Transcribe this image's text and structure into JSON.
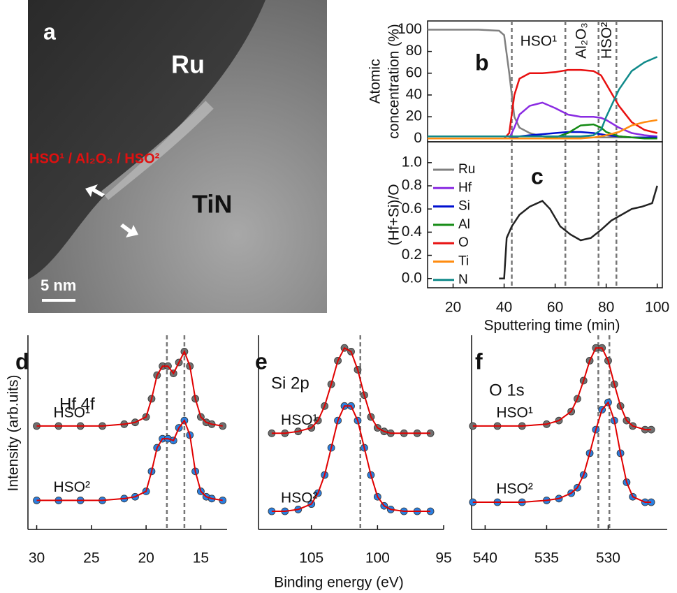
{
  "tem_image": {
    "label": "a",
    "labels": [
      "Ru",
      "TiN"
    ],
    "stack": "HSO¹ / Al₂O₃ / HSO²",
    "scale_bar": "5 nm"
  },
  "figure": {
    "xlabel": "Binding energy (eV)",
    "ylabel": "Intensity (arb.uits)"
  },
  "chart_data": [
    {
      "type": "line",
      "label": "b",
      "ylabel": [
        "Atomic",
        "concentration (%)"
      ],
      "xlim": [
        10,
        102
      ],
      "ylim": [
        -3,
        108
      ],
      "yticks": [
        0,
        20,
        40,
        60,
        80,
        100
      ],
      "vlines": [
        43,
        64,
        77,
        84
      ],
      "region_labels": [
        "HSO¹",
        "Al₂O₃",
        "HSO²"
      ],
      "legend": "left",
      "x": [
        10,
        20,
        30,
        38,
        40,
        42,
        44,
        46,
        50,
        55,
        60,
        65,
        70,
        75,
        78,
        80,
        85,
        90,
        95,
        100
      ],
      "series": [
        {
          "name": "Ru",
          "color": "#808080",
          "values": [
            100,
            100,
            100,
            99,
            95,
            60,
            20,
            10,
            5,
            2,
            1,
            1,
            1,
            1,
            1,
            1,
            1,
            1,
            1,
            1
          ]
        },
        {
          "name": "Hf",
          "color": "#8a2be2",
          "values": [
            0,
            0,
            0,
            0,
            0,
            0,
            10,
            22,
            30,
            33,
            28,
            22,
            20,
            20,
            19,
            17,
            10,
            5,
            3,
            2
          ]
        },
        {
          "name": "Si",
          "color": "#0010d0",
          "values": [
            0,
            0,
            0,
            0,
            0,
            0,
            1,
            2,
            3,
            4,
            5,
            6,
            6,
            5,
            4,
            3,
            2,
            1,
            1,
            1
          ]
        },
        {
          "name": "Al",
          "color": "#138a13",
          "values": [
            0,
            0,
            0,
            0,
            0,
            0,
            0,
            0,
            0,
            0,
            1,
            5,
            12,
            13,
            10,
            6,
            2,
            1,
            0,
            0
          ]
        },
        {
          "name": "O",
          "color": "#e81010",
          "values": [
            0,
            0,
            0,
            0,
            0,
            5,
            40,
            55,
            60,
            60,
            61,
            63,
            63,
            62,
            58,
            50,
            30,
            15,
            8,
            5
          ]
        },
        {
          "name": "Ti",
          "color": "#ff8c10",
          "values": [
            0,
            0,
            0,
            0,
            0,
            0,
            0,
            0,
            0,
            0,
            0,
            0,
            0,
            1,
            2,
            3,
            6,
            12,
            15,
            17
          ]
        },
        {
          "name": "N",
          "color": "#108a8a",
          "values": [
            2,
            2,
            2,
            2,
            2,
            2,
            2,
            2,
            2,
            2,
            2,
            2,
            2,
            3,
            8,
            20,
            45,
            62,
            70,
            75
          ]
        }
      ]
    },
    {
      "type": "line",
      "label": "c",
      "ylabel": [
        "(Hf+Si)/O"
      ],
      "xlabel": "Sputtering time (min)",
      "xlim": [
        10,
        102
      ],
      "ylim": [
        -0.08,
        1.18
      ],
      "xticks": [
        20,
        40,
        60,
        80,
        100
      ],
      "yticks": [
        {
          "value": 0,
          "label": "0.0"
        },
        0.2,
        0.4,
        0.6,
        0.8,
        {
          "value": 1,
          "label": "1.0"
        }
      ],
      "vlines": [
        43,
        64,
        77,
        84
      ],
      "x": [
        38,
        40,
        41,
        43,
        46,
        50,
        55,
        58,
        62,
        66,
        70,
        74,
        78,
        82,
        86,
        90,
        94,
        98,
        100
      ],
      "series": [
        {
          "color": "#222222",
          "values": [
            0,
            0,
            0.35,
            0.45,
            0.55,
            0.62,
            0.67,
            0.6,
            0.45,
            0.38,
            0.33,
            0.35,
            0.42,
            0.5,
            0.55,
            0.6,
            0.62,
            0.65,
            0.8
          ]
        }
      ]
    },
    {
      "type": "scatter",
      "label": "d",
      "title": "Hf 4f",
      "xlim": [
        30.8,
        12.6
      ],
      "ylim": [
        0,
        1.07
      ],
      "xticks": [
        30,
        25,
        20,
        15
      ],
      "vlines": [
        18.1,
        16.5
      ],
      "fit_color": "#e00000",
      "x": [
        30,
        28,
        26,
        24,
        22,
        21,
        20,
        19.5,
        19,
        18.5,
        18,
        17.5,
        17,
        16.5,
        16,
        15.5,
        15,
        14.5,
        14,
        13
      ],
      "series": [
        {
          "name": "HSO¹",
          "color": "#707070",
          "values": [
            0.57,
            0.57,
            0.57,
            0.57,
            0.58,
            0.59,
            0.62,
            0.72,
            0.85,
            0.9,
            0.9,
            0.86,
            0.92,
            0.98,
            0.9,
            0.72,
            0.62,
            0.59,
            0.58,
            0.57
          ]
        },
        {
          "name": "HSO²",
          "color": "#2a7fe0",
          "values": [
            0.16,
            0.16,
            0.16,
            0.16,
            0.17,
            0.18,
            0.21,
            0.32,
            0.45,
            0.5,
            0.5,
            0.49,
            0.56,
            0.6,
            0.52,
            0.32,
            0.21,
            0.18,
            0.17,
            0.16
          ]
        }
      ]
    },
    {
      "type": "scatter",
      "label": "e",
      "title": "Si 2p",
      "xlim": [
        109,
        95
      ],
      "ylim": [
        0,
        1.07
      ],
      "xticks": [
        105,
        100,
        95
      ],
      "vlines": [
        101.3
      ],
      "fit_color": "#e00000",
      "x": [
        108,
        107,
        106,
        105,
        104.5,
        104,
        103.5,
        103,
        102.5,
        102,
        101.5,
        101,
        100.5,
        100,
        99.5,
        99,
        98,
        97,
        96
      ],
      "series": [
        {
          "name": "HSO¹",
          "color": "#707070",
          "values": [
            0.53,
            0.53,
            0.54,
            0.56,
            0.6,
            0.68,
            0.8,
            0.93,
            1.0,
            0.98,
            0.88,
            0.74,
            0.62,
            0.56,
            0.54,
            0.53,
            0.53,
            0.53,
            0.53
          ]
        },
        {
          "name": "HSO²",
          "color": "#2a7fe0",
          "values": [
            0.1,
            0.1,
            0.11,
            0.14,
            0.2,
            0.3,
            0.45,
            0.6,
            0.68,
            0.68,
            0.6,
            0.45,
            0.3,
            0.18,
            0.13,
            0.11,
            0.1,
            0.1,
            0.1
          ]
        }
      ]
    },
    {
      "type": "scatter",
      "label": "f",
      "title": "O 1s",
      "xlim": [
        541.1,
        525.2
      ],
      "ylim": [
        0,
        1.07
      ],
      "xticks": [
        540,
        535,
        530
      ],
      "vlines": [
        530.8,
        529.9
      ],
      "fit_color": "#e00000",
      "x": [
        541,
        539,
        537,
        535,
        534,
        533,
        532.5,
        532,
        531.5,
        531,
        530.5,
        530,
        529.5,
        529,
        528.5,
        528,
        527,
        526.5
      ],
      "series": [
        {
          "name": "HSO¹",
          "color": "#707070",
          "values": [
            0.57,
            0.57,
            0.57,
            0.58,
            0.6,
            0.65,
            0.72,
            0.82,
            0.93,
            1.0,
            1.0,
            0.93,
            0.8,
            0.68,
            0.6,
            0.57,
            0.55,
            0.55
          ]
        },
        {
          "name": "HSO²",
          "color": "#2a7fe0",
          "values": [
            0.15,
            0.15,
            0.15,
            0.16,
            0.17,
            0.2,
            0.23,
            0.3,
            0.42,
            0.55,
            0.66,
            0.7,
            0.6,
            0.42,
            0.26,
            0.18,
            0.15,
            0.15
          ]
        }
      ]
    }
  ]
}
